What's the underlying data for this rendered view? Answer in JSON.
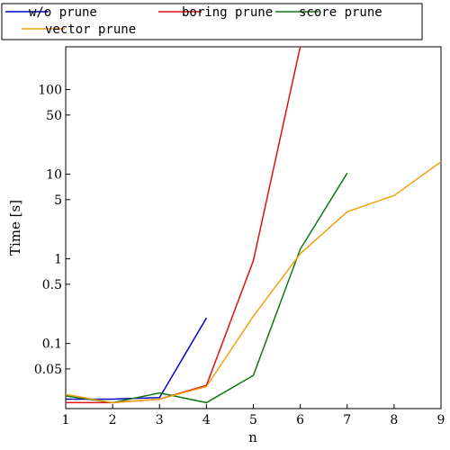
{
  "chart_data": {
    "type": "line",
    "xlabel": "n",
    "ylabel": "Time [s]",
    "y_scale": "log",
    "xlim": [
      1,
      9
    ],
    "ylim": [
      0.017,
      320
    ],
    "x_ticks": [
      1,
      2,
      3,
      4,
      5,
      6,
      7,
      8,
      9
    ],
    "x_tick_labels": [
      "1",
      "2",
      "3",
      "4",
      "5",
      "6",
      "7",
      "8",
      "9"
    ],
    "y_ticks": [
      0.05,
      0.1,
      0.5,
      1,
      5,
      10,
      50,
      100
    ],
    "y_tick_labels": [
      "0.05",
      "0.1",
      "0.5",
      "1",
      "5",
      "10",
      "50",
      "100"
    ],
    "legend_position": "top",
    "grid": false,
    "series": [
      {
        "name": "w/o prune",
        "color": "#0000cc",
        "x": [
          1,
          2,
          3,
          4
        ],
        "y": [
          0.022,
          0.022,
          0.023,
          0.2
        ]
      },
      {
        "name": "boring prune",
        "color": "#dd1111",
        "x": [
          1,
          2,
          3,
          4,
          5,
          6
        ],
        "y": [
          0.02,
          0.02,
          0.022,
          0.032,
          0.95,
          320
        ]
      },
      {
        "name": "score prune",
        "color": "#117711",
        "x": [
          1,
          2,
          3,
          4,
          5,
          6,
          7
        ],
        "y": [
          0.024,
          0.02,
          0.026,
          0.02,
          0.042,
          1.3,
          10.3
        ]
      },
      {
        "name": "vector prune",
        "color": "#f0a010",
        "x": [
          1,
          2,
          3,
          4,
          5,
          6,
          7,
          8,
          9
        ],
        "y": [
          0.025,
          0.02,
          0.022,
          0.031,
          0.21,
          1.15,
          3.6,
          5.6,
          14
        ]
      }
    ]
  }
}
